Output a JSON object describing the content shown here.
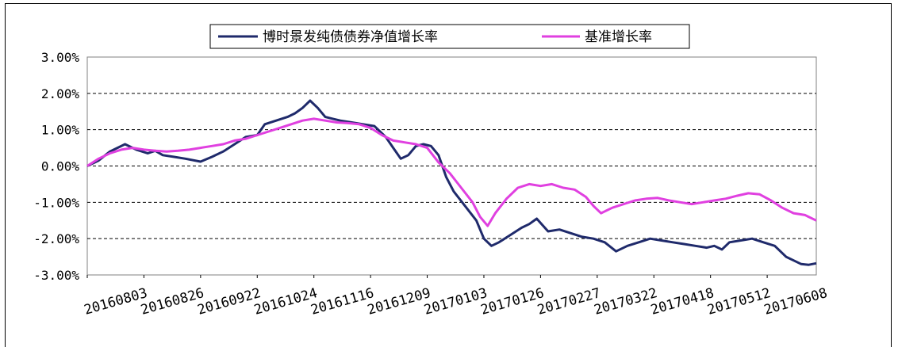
{
  "chart_data": {
    "type": "line",
    "title": "",
    "xlabel": "",
    "ylabel": "",
    "ylim": [
      -3.0,
      3.0
    ],
    "y_ticks": [
      "3.00%",
      "2.00%",
      "1.00%",
      "0.00%",
      "-1.00%",
      "-2.00%",
      "-3.00%"
    ],
    "x_ticks": [
      "20160803",
      "20160826",
      "20160922",
      "20161024",
      "20161116",
      "20161209",
      "20170103",
      "20170126",
      "20170227",
      "20170322",
      "20170418",
      "20170512",
      "20170608"
    ],
    "x_tick_positions": [
      0,
      15,
      30,
      45,
      60,
      75,
      90,
      105,
      120,
      135,
      150,
      165,
      180
    ],
    "x_max": 193,
    "grid": "horizontal dashed",
    "legend_position": "top",
    "series": [
      {
        "name": "博时景发纯债债券净值增长率",
        "color": "#1f2a6b",
        "points": [
          [
            0,
            0
          ],
          [
            3,
            0.15
          ],
          [
            6,
            0.4
          ],
          [
            8,
            0.5
          ],
          [
            10,
            0.6
          ],
          [
            13,
            0.45
          ],
          [
            16,
            0.35
          ],
          [
            18,
            0.42
          ],
          [
            20,
            0.3
          ],
          [
            23,
            0.25
          ],
          [
            26,
            0.2
          ],
          [
            30,
            0.12
          ],
          [
            33,
            0.25
          ],
          [
            36,
            0.4
          ],
          [
            39,
            0.6
          ],
          [
            42,
            0.8
          ],
          [
            45,
            0.85
          ],
          [
            47,
            1.15
          ],
          [
            50,
            1.25
          ],
          [
            53,
            1.35
          ],
          [
            55,
            1.45
          ],
          [
            57,
            1.6
          ],
          [
            59,
            1.8
          ],
          [
            61,
            1.6
          ],
          [
            63,
            1.35
          ],
          [
            65,
            1.3
          ],
          [
            67,
            1.25
          ],
          [
            70,
            1.2
          ],
          [
            73,
            1.15
          ],
          [
            76,
            1.1
          ],
          [
            79,
            0.8
          ],
          [
            81,
            0.5
          ],
          [
            83,
            0.2
          ],
          [
            85,
            0.3
          ],
          [
            87,
            0.55
          ],
          [
            89,
            0.6
          ],
          [
            91,
            0.55
          ],
          [
            93,
            0.3
          ],
          [
            95,
            -0.3
          ],
          [
            97,
            -0.7
          ],
          [
            100,
            -1.1
          ],
          [
            103,
            -1.5
          ],
          [
            105,
            -2.0
          ],
          [
            107,
            -2.2
          ],
          [
            109,
            -2.1
          ],
          [
            112,
            -1.9
          ],
          [
            115,
            -1.7
          ],
          [
            117,
            -1.6
          ],
          [
            119,
            -1.45
          ],
          [
            122,
            -1.8
          ],
          [
            125,
            -1.75
          ],
          [
            128,
            -1.85
          ],
          [
            131,
            -1.95
          ],
          [
            134,
            -2.0
          ],
          [
            137,
            -2.1
          ],
          [
            140,
            -2.35
          ],
          [
            143,
            -2.2
          ],
          [
            146,
            -2.1
          ],
          [
            149,
            -2.0
          ],
          [
            152,
            -2.05
          ],
          [
            155,
            -2.1
          ],
          [
            158,
            -2.15
          ],
          [
            161,
            -2.2
          ],
          [
            164,
            -2.25
          ],
          [
            166,
            -2.2
          ],
          [
            168,
            -2.3
          ],
          [
            170,
            -2.1
          ],
          [
            173,
            -2.05
          ],
          [
            176,
            -2.0
          ],
          [
            179,
            -2.1
          ],
          [
            182,
            -2.2
          ],
          [
            185,
            -2.5
          ],
          [
            187,
            -2.6
          ],
          [
            189,
            -2.7
          ],
          [
            191,
            -2.72
          ],
          [
            193,
            -2.68
          ]
        ]
      },
      {
        "name": "基准增长率",
        "color": "#e040e0",
        "points": [
          [
            0,
            0
          ],
          [
            3,
            0.2
          ],
          [
            6,
            0.35
          ],
          [
            9,
            0.45
          ],
          [
            12,
            0.5
          ],
          [
            15,
            0.45
          ],
          [
            18,
            0.42
          ],
          [
            21,
            0.4
          ],
          [
            24,
            0.42
          ],
          [
            27,
            0.45
          ],
          [
            30,
            0.5
          ],
          [
            33,
            0.55
          ],
          [
            36,
            0.6
          ],
          [
            39,
            0.7
          ],
          [
            42,
            0.75
          ],
          [
            45,
            0.85
          ],
          [
            48,
            0.95
          ],
          [
            51,
            1.05
          ],
          [
            54,
            1.15
          ],
          [
            57,
            1.25
          ],
          [
            60,
            1.3
          ],
          [
            63,
            1.25
          ],
          [
            66,
            1.2
          ],
          [
            69,
            1.18
          ],
          [
            72,
            1.15
          ],
          [
            75,
            1.05
          ],
          [
            78,
            0.85
          ],
          [
            81,
            0.7
          ],
          [
            84,
            0.65
          ],
          [
            87,
            0.6
          ],
          [
            90,
            0.5
          ],
          [
            93,
            0.1
          ],
          [
            96,
            -0.2
          ],
          [
            99,
            -0.6
          ],
          [
            102,
            -1.0
          ],
          [
            104,
            -1.4
          ],
          [
            106,
            -1.65
          ],
          [
            108,
            -1.3
          ],
          [
            111,
            -0.9
          ],
          [
            114,
            -0.6
          ],
          [
            117,
            -0.5
          ],
          [
            120,
            -0.55
          ],
          [
            123,
            -0.5
          ],
          [
            126,
            -0.6
          ],
          [
            129,
            -0.65
          ],
          [
            132,
            -0.85
          ],
          [
            134,
            -1.1
          ],
          [
            136,
            -1.3
          ],
          [
            139,
            -1.15
          ],
          [
            142,
            -1.05
          ],
          [
            145,
            -0.95
          ],
          [
            148,
            -0.9
          ],
          [
            151,
            -0.88
          ],
          [
            154,
            -0.95
          ],
          [
            157,
            -1.0
          ],
          [
            160,
            -1.05
          ],
          [
            163,
            -1.0
          ],
          [
            166,
            -0.95
          ],
          [
            169,
            -0.9
          ],
          [
            172,
            -0.82
          ],
          [
            175,
            -0.75
          ],
          [
            178,
            -0.78
          ],
          [
            181,
            -0.95
          ],
          [
            184,
            -1.15
          ],
          [
            187,
            -1.3
          ],
          [
            190,
            -1.35
          ],
          [
            193,
            -1.5
          ]
        ]
      }
    ]
  }
}
